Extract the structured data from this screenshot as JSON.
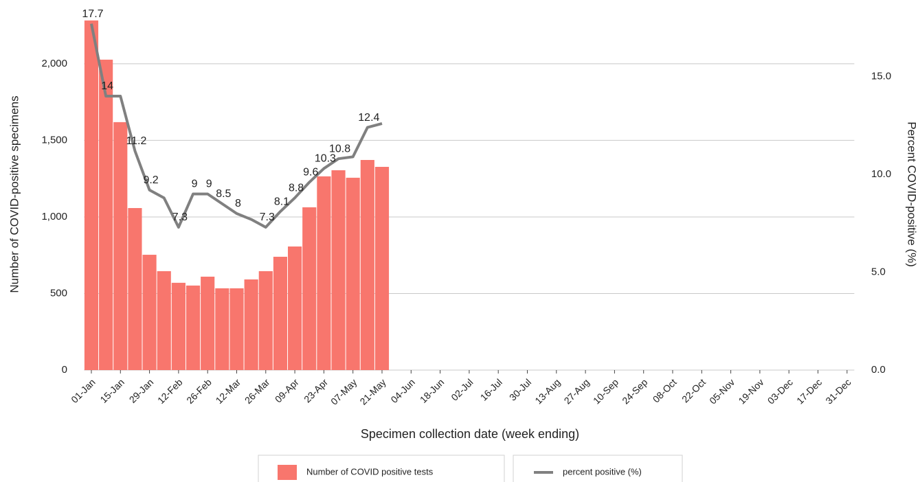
{
  "chart_data": {
    "type": "bar+line",
    "x_label": "Specimen collection date (week ending)",
    "y_label": "Number of COVID-positive specimens",
    "y2_label": "Percent COVID-positive (%)",
    "categories": [
      "01-Jan",
      null,
      "15-Jan",
      null,
      "29-Jan",
      null,
      "12-Feb",
      null,
      "26-Feb",
      null,
      "12-Mar",
      null,
      "26-Mar",
      null,
      "09-Apr",
      null,
      "23-Apr",
      null,
      "07-May",
      null,
      "21-May",
      null,
      "04-Jun",
      null,
      "18-Jun",
      null,
      "02-Jul",
      null,
      "16-Jul",
      null,
      "30-Jul",
      null,
      "13-Aug",
      null,
      "27-Aug",
      null,
      "10-Sep",
      null,
      "24-Sep",
      null,
      "08-Oct",
      null,
      "22-Oct",
      null,
      "05-Nov",
      null,
      "19-Nov",
      null,
      "03-Dec",
      null,
      "17-Dec",
      null,
      "31-Dec"
    ],
    "series": [
      {
        "name": "Number of COVID positive tests",
        "type": "bar",
        "color": "#f8766d",
        "values": [
          2283,
          2027,
          1619,
          1058,
          753,
          646,
          570,
          552,
          610,
          534,
          534,
          592,
          646,
          740,
          807,
          1063,
          1265,
          1305,
          1256,
          1372,
          1327,
          null,
          null,
          null,
          null,
          null,
          null,
          null,
          null,
          null,
          null,
          null,
          null,
          null,
          null,
          null,
          null,
          null,
          null,
          null,
          null,
          null,
          null,
          null,
          null,
          null,
          null,
          null,
          null,
          null,
          null,
          null,
          null
        ]
      },
      {
        "name": "percent positive (%)",
        "type": "line",
        "color": "#808080",
        "axis": "y2",
        "values": [
          17.7,
          14,
          14,
          11.2,
          9.2,
          8.8,
          7.3,
          9,
          9,
          8.5,
          8,
          7.7,
          7.3,
          8.1,
          8.8,
          9.6,
          10.3,
          10.8,
          10.9,
          12.4,
          12.6,
          null,
          null,
          null,
          null,
          null,
          null,
          null,
          null,
          null,
          null,
          null,
          null,
          null,
          null,
          null,
          null,
          null,
          null,
          null,
          null,
          null,
          null,
          null,
          null,
          null,
          null,
          null,
          null,
          null,
          null,
          null,
          null
        ],
        "value_labels": [
          "17.7",
          "14",
          null,
          "11.2",
          "9.2",
          null,
          "7.3",
          "9",
          "9",
          "8.5",
          "8",
          null,
          "7.3",
          "8.1",
          "8.8",
          "9.6",
          "10.3",
          "10.8",
          null,
          "12.4",
          null,
          null,
          null,
          null,
          null,
          null,
          null,
          null,
          null,
          null,
          null,
          null,
          null,
          null,
          null,
          null,
          null,
          null,
          null,
          null,
          null,
          null,
          null,
          null,
          null,
          null,
          null,
          null,
          null,
          null,
          null,
          null,
          null
        ]
      }
    ],
    "ylim": [
      0,
      2300
    ],
    "yticks": [
      0,
      500,
      {
        "value": 1000,
        "label": "1,000"
      },
      {
        "value": 1500,
        "label": "1,500"
      },
      {
        "value": 2000,
        "label": "2,000"
      }
    ],
    "y2lim": [
      0,
      18
    ],
    "y2ticks": [
      {
        "value": 0,
        "label": "0.0"
      },
      {
        "value": 5,
        "label": "5.0"
      },
      {
        "value": 10,
        "label": "10.0"
      },
      {
        "value": 15,
        "label": "15.0"
      }
    ],
    "grid": true,
    "legend": "bottom"
  }
}
